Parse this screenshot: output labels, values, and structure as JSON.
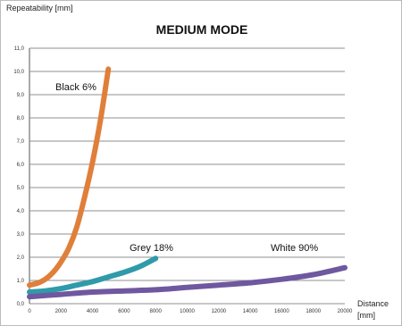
{
  "chart_data": {
    "type": "line",
    "title": "MEDIUM MODE",
    "ylabel": "Repeatability [mm]",
    "xlabel_line1": "Distance",
    "xlabel_line2": "[mm]",
    "xlim": [
      0,
      20000
    ],
    "ylim": [
      0,
      11
    ],
    "x_ticks": [
      0,
      2000,
      4000,
      6000,
      8000,
      10000,
      12000,
      14000,
      16000,
      18000,
      20000
    ],
    "y_ticks": [
      "0,0",
      "1,0",
      "2,0",
      "3,0",
      "4,0",
      "5,0",
      "6,0",
      "7,0",
      "8,0",
      "9,0",
      "10,0",
      "11,0"
    ],
    "grid": "horizontal",
    "series": [
      {
        "name": "Black 6%",
        "color": "#e07f3a",
        "points": [
          [
            0,
            0.8
          ],
          [
            500,
            0.88
          ],
          [
            1000,
            1.05
          ],
          [
            1500,
            1.35
          ],
          [
            2000,
            1.8
          ],
          [
            2500,
            2.4
          ],
          [
            3000,
            3.3
          ],
          [
            3500,
            4.6
          ],
          [
            4000,
            6.1
          ],
          [
            4500,
            7.9
          ],
          [
            5000,
            10.1
          ]
        ]
      },
      {
        "name": "Grey 18%",
        "color": "#2f9aaa",
        "points": [
          [
            0,
            0.5
          ],
          [
            1000,
            0.55
          ],
          [
            2000,
            0.65
          ],
          [
            3000,
            0.8
          ],
          [
            4000,
            0.95
          ],
          [
            5000,
            1.15
          ],
          [
            6000,
            1.35
          ],
          [
            7000,
            1.6
          ],
          [
            8000,
            1.95
          ]
        ]
      },
      {
        "name": "White 90%",
        "color": "#6f58a0",
        "points": [
          [
            0,
            0.3
          ],
          [
            2000,
            0.4
          ],
          [
            4000,
            0.5
          ],
          [
            6000,
            0.55
          ],
          [
            8000,
            0.6
          ],
          [
            10000,
            0.7
          ],
          [
            12000,
            0.8
          ],
          [
            14000,
            0.9
          ],
          [
            16000,
            1.05
          ],
          [
            18000,
            1.25
          ],
          [
            20000,
            1.55
          ]
        ]
      }
    ]
  }
}
